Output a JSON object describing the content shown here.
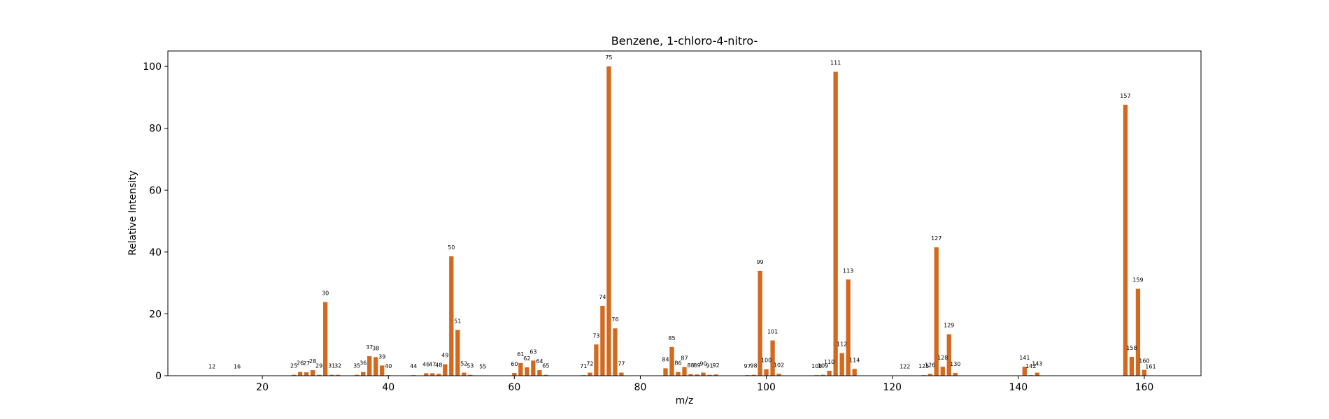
{
  "chart_data": {
    "type": "bar",
    "title": "Benzene, 1-chloro-4-nitro-",
    "xlabel": "m/z",
    "ylabel": "Relative Intensity",
    "xlim": [
      5,
      169
    ],
    "ylim": [
      0,
      105
    ],
    "xticks": [
      20,
      40,
      60,
      80,
      100,
      120,
      140,
      160
    ],
    "yticks": [
      0,
      20,
      40,
      60,
      80,
      100
    ],
    "grid": false,
    "bar_color": "#d2691e",
    "x": [
      12,
      16,
      25,
      26,
      27,
      28,
      29,
      30,
      31,
      32,
      35,
      36,
      37,
      38,
      39,
      40,
      44,
      46,
      47,
      48,
      49,
      50,
      51,
      52,
      53,
      55,
      60,
      61,
      62,
      63,
      64,
      65,
      71,
      72,
      73,
      74,
      75,
      76,
      77,
      84,
      85,
      86,
      87,
      88,
      89,
      90,
      91,
      92,
      97,
      98,
      99,
      100,
      101,
      102,
      108,
      109,
      110,
      111,
      112,
      113,
      114,
      122,
      125,
      126,
      127,
      128,
      129,
      130,
      141,
      142,
      143,
      157,
      158,
      159,
      160,
      161
    ],
    "values": [
      0.1,
      0.1,
      0.3,
      1.2,
      1.1,
      1.8,
      0.3,
      23.8,
      0.3,
      0.3,
      0.3,
      1.2,
      6.3,
      6.0,
      3.3,
      0.2,
      0.2,
      0.8,
      0.8,
      0.6,
      3.7,
      38.6,
      14.8,
      1.0,
      0.3,
      0.1,
      0.9,
      4.1,
      2.7,
      4.9,
      1.8,
      0.3,
      0.2,
      1.0,
      10.1,
      22.6,
      100.0,
      15.3,
      1.0,
      2.4,
      9.3,
      1.2,
      2.8,
      0.5,
      0.4,
      1.0,
      0.3,
      0.4,
      0.2,
      0.3,
      33.9,
      2.1,
      11.4,
      0.6,
      0.2,
      0.3,
      1.6,
      98.3,
      7.3,
      31.1,
      2.2,
      0.1,
      0.2,
      0.6,
      41.5,
      2.9,
      13.4,
      0.9,
      2.9,
      0.2,
      1.0,
      87.6,
      6.1,
      28.1,
      1.9,
      0.1
    ]
  }
}
